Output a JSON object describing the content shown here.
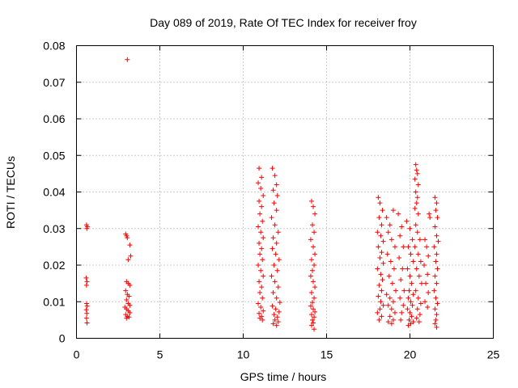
{
  "chart_data": {
    "type": "scatter",
    "title": "Day 089 of 2019, Rate Of TEC Index for receiver froy",
    "xlabel": "GPS time / hours",
    "ylabel": "ROTI / TECUs",
    "xlim": [
      0,
      25
    ],
    "ylim": [
      0,
      0.08
    ],
    "x_ticks": [
      0,
      5,
      10,
      15,
      20,
      25
    ],
    "y_ticks": [
      0,
      0.01,
      0.02,
      0.03,
      0.04,
      0.05,
      0.06,
      0.07,
      0.08
    ],
    "x_tick_labels": [
      "0",
      "5",
      "10",
      "15",
      "20",
      "25"
    ],
    "y_tick_labels": [
      "0",
      "0.01",
      "0.02",
      "0.03",
      "0.04",
      "0.05",
      "0.06",
      "0.07",
      "0.08"
    ],
    "grid": true,
    "marker": "+",
    "color": "#ff0000",
    "series": [
      {
        "name": "ROTI",
        "points": [
          [
            0.6,
            0.031
          ],
          [
            0.65,
            0.0305
          ],
          [
            0.62,
            0.03
          ],
          [
            0.58,
            0.0165
          ],
          [
            0.63,
            0.0155
          ],
          [
            0.6,
            0.0145
          ],
          [
            0.61,
            0.0095
          ],
          [
            0.64,
            0.0088
          ],
          [
            0.59,
            0.0078
          ],
          [
            0.62,
            0.0068
          ],
          [
            0.6,
            0.0055
          ],
          [
            0.63,
            0.0042
          ],
          [
            3.05,
            0.0762
          ],
          [
            2.95,
            0.0285
          ],
          [
            3.0,
            0.028
          ],
          [
            3.05,
            0.0275
          ],
          [
            3.2,
            0.0255
          ],
          [
            3.25,
            0.0225
          ],
          [
            3.1,
            0.0215
          ],
          [
            3.0,
            0.0155
          ],
          [
            3.1,
            0.015
          ],
          [
            3.2,
            0.0145
          ],
          [
            2.95,
            0.013
          ],
          [
            3.05,
            0.012
          ],
          [
            3.15,
            0.0115
          ],
          [
            3.0,
            0.0105
          ],
          [
            3.1,
            0.0095
          ],
          [
            3.2,
            0.009
          ],
          [
            2.9,
            0.0085
          ],
          [
            3.0,
            0.008
          ],
          [
            3.1,
            0.0075
          ],
          [
            3.2,
            0.007
          ],
          [
            2.95,
            0.0065
          ],
          [
            3.05,
            0.006
          ],
          [
            3.15,
            0.0058
          ],
          [
            3.0,
            0.0055
          ],
          [
            10.95,
            0.0465
          ],
          [
            11.1,
            0.044
          ],
          [
            10.9,
            0.0425
          ],
          [
            11.05,
            0.041
          ],
          [
            11.2,
            0.039
          ],
          [
            10.95,
            0.0375
          ],
          [
            11.1,
            0.036
          ],
          [
            11.0,
            0.034
          ],
          [
            11.15,
            0.032
          ],
          [
            10.9,
            0.0305
          ],
          [
            11.05,
            0.029
          ],
          [
            11.2,
            0.0275
          ],
          [
            10.95,
            0.026
          ],
          [
            11.1,
            0.0245
          ],
          [
            11.0,
            0.023
          ],
          [
            11.15,
            0.0215
          ],
          [
            10.9,
            0.02
          ],
          [
            11.05,
            0.0185
          ],
          [
            11.2,
            0.017
          ],
          [
            10.95,
            0.0155
          ],
          [
            11.1,
            0.014
          ],
          [
            11.0,
            0.0125
          ],
          [
            11.15,
            0.011
          ],
          [
            10.9,
            0.0095
          ],
          [
            11.05,
            0.0085
          ],
          [
            11.2,
            0.0075
          ],
          [
            10.95,
            0.0068
          ],
          [
            11.1,
            0.006
          ],
          [
            11.0,
            0.0055
          ],
          [
            11.15,
            0.005
          ],
          [
            11.75,
            0.0465
          ],
          [
            11.9,
            0.0445
          ],
          [
            12.0,
            0.042
          ],
          [
            11.8,
            0.0405
          ],
          [
            12.05,
            0.039
          ],
          [
            11.85,
            0.037
          ],
          [
            12.0,
            0.035
          ],
          [
            11.7,
            0.033
          ],
          [
            11.9,
            0.031
          ],
          [
            12.1,
            0.029
          ],
          [
            11.8,
            0.0275
          ],
          [
            12.0,
            0.026
          ],
          [
            11.75,
            0.0245
          ],
          [
            11.95,
            0.023
          ],
          [
            12.15,
            0.0215
          ],
          [
            11.85,
            0.02
          ],
          [
            12.05,
            0.0185
          ],
          [
            11.7,
            0.017
          ],
          [
            11.9,
            0.0155
          ],
          [
            12.1,
            0.014
          ],
          [
            11.8,
            0.0125
          ],
          [
            12.0,
            0.011
          ],
          [
            12.2,
            0.0098
          ],
          [
            11.75,
            0.0088
          ],
          [
            11.95,
            0.008
          ],
          [
            12.15,
            0.0072
          ],
          [
            11.85,
            0.0065
          ],
          [
            12.05,
            0.0058
          ],
          [
            11.9,
            0.005
          ],
          [
            12.1,
            0.0045
          ],
          [
            11.8,
            0.004
          ],
          [
            12.0,
            0.0035
          ],
          [
            14.1,
            0.0375
          ],
          [
            14.2,
            0.036
          ],
          [
            14.3,
            0.034
          ],
          [
            14.15,
            0.031
          ],
          [
            14.25,
            0.029
          ],
          [
            14.05,
            0.027
          ],
          [
            14.2,
            0.025
          ],
          [
            14.3,
            0.023
          ],
          [
            14.1,
            0.0215
          ],
          [
            14.25,
            0.02
          ],
          [
            14.15,
            0.0185
          ],
          [
            14.05,
            0.017
          ],
          [
            14.2,
            0.0155
          ],
          [
            14.3,
            0.014
          ],
          [
            14.1,
            0.0125
          ],
          [
            14.25,
            0.011
          ],
          [
            14.15,
            0.0098
          ],
          [
            14.05,
            0.0088
          ],
          [
            14.2,
            0.008
          ],
          [
            14.3,
            0.0072
          ],
          [
            14.1,
            0.0065
          ],
          [
            14.25,
            0.0058
          ],
          [
            14.15,
            0.005
          ],
          [
            14.2,
            0.0042
          ],
          [
            14.1,
            0.0035
          ],
          [
            14.25,
            0.0025
          ],
          [
            18.1,
            0.0385
          ],
          [
            18.2,
            0.037
          ],
          [
            18.35,
            0.035
          ],
          [
            18.15,
            0.033
          ],
          [
            18.3,
            0.031
          ],
          [
            18.05,
            0.029
          ],
          [
            18.25,
            0.028
          ],
          [
            18.4,
            0.0265
          ],
          [
            18.1,
            0.025
          ],
          [
            18.3,
            0.0235
          ],
          [
            18.2,
            0.022
          ],
          [
            18.4,
            0.0205
          ],
          [
            18.05,
            0.019
          ],
          [
            18.25,
            0.0175
          ],
          [
            18.35,
            0.016
          ],
          [
            18.15,
            0.0145
          ],
          [
            18.3,
            0.013
          ],
          [
            18.1,
            0.0115
          ],
          [
            18.25,
            0.01
          ],
          [
            18.4,
            0.009
          ],
          [
            18.2,
            0.008
          ],
          [
            18.05,
            0.007
          ],
          [
            18.3,
            0.006
          ],
          [
            18.15,
            0.005
          ],
          [
            18.6,
            0.033
          ],
          [
            18.8,
            0.031
          ],
          [
            19.0,
            0.035
          ],
          [
            18.7,
            0.029
          ],
          [
            18.9,
            0.027
          ],
          [
            19.1,
            0.025
          ],
          [
            18.65,
            0.023
          ],
          [
            18.85,
            0.021
          ],
          [
            19.05,
            0.019
          ],
          [
            18.75,
            0.017
          ],
          [
            18.95,
            0.015
          ],
          [
            19.15,
            0.013
          ],
          [
            18.6,
            0.012
          ],
          [
            18.8,
            0.011
          ],
          [
            19.0,
            0.01
          ],
          [
            18.7,
            0.009
          ],
          [
            18.9,
            0.008
          ],
          [
            19.1,
            0.007
          ],
          [
            18.8,
            0.006
          ],
          [
            19.0,
            0.005
          ],
          [
            18.7,
            0.0045
          ],
          [
            18.9,
            0.004
          ],
          [
            19.3,
            0.034
          ],
          [
            19.5,
            0.0305
          ],
          [
            19.4,
            0.028
          ],
          [
            19.6,
            0.025
          ],
          [
            19.35,
            0.022
          ],
          [
            19.55,
            0.019
          ],
          [
            19.45,
            0.016
          ],
          [
            19.65,
            0.013
          ],
          [
            19.4,
            0.011
          ],
          [
            19.6,
            0.009
          ],
          [
            19.5,
            0.007
          ],
          [
            19.45,
            0.005
          ],
          [
            19.8,
            0.032
          ],
          [
            20.0,
            0.03
          ],
          [
            20.15,
            0.027
          ],
          [
            19.9,
            0.025
          ],
          [
            20.05,
            0.023
          ],
          [
            20.2,
            0.021
          ],
          [
            19.85,
            0.019
          ],
          [
            20.0,
            0.017
          ],
          [
            20.1,
            0.015
          ],
          [
            19.95,
            0.013
          ],
          [
            20.2,
            0.012
          ],
          [
            19.9,
            0.011
          ],
          [
            20.05,
            0.01
          ],
          [
            20.15,
            0.009
          ],
          [
            19.85,
            0.008
          ],
          [
            20.0,
            0.007
          ],
          [
            20.1,
            0.006
          ],
          [
            19.95,
            0.005
          ],
          [
            20.2,
            0.0045
          ],
          [
            20.05,
            0.004
          ],
          [
            19.9,
            0.0035
          ],
          [
            20.35,
            0.0475
          ],
          [
            20.4,
            0.046
          ],
          [
            20.45,
            0.045
          ],
          [
            20.3,
            0.0435
          ],
          [
            20.5,
            0.042
          ],
          [
            20.35,
            0.04
          ],
          [
            20.45,
            0.0385
          ],
          [
            20.4,
            0.037
          ],
          [
            20.3,
            0.0355
          ],
          [
            20.5,
            0.034
          ],
          [
            20.35,
            0.031
          ],
          [
            20.45,
            0.029
          ],
          [
            20.6,
            0.027
          ],
          [
            20.3,
            0.025
          ],
          [
            20.5,
            0.023
          ],
          [
            20.65,
            0.021
          ],
          [
            20.4,
            0.019
          ],
          [
            20.55,
            0.017
          ],
          [
            20.7,
            0.015
          ],
          [
            20.35,
            0.013
          ],
          [
            20.5,
            0.011
          ],
          [
            20.65,
            0.0095
          ],
          [
            20.45,
            0.008
          ],
          [
            20.6,
            0.0065
          ],
          [
            20.4,
            0.0055
          ],
          [
            20.55,
            0.0045
          ],
          [
            20.9,
            0.027
          ],
          [
            21.0,
            0.025
          ],
          [
            21.1,
            0.0225
          ],
          [
            20.85,
            0.02
          ],
          [
            21.05,
            0.0175
          ],
          [
            20.95,
            0.015
          ],
          [
            21.1,
            0.0125
          ],
          [
            20.9,
            0.01
          ],
          [
            21.05,
            0.0085
          ],
          [
            21.2,
            0.033
          ],
          [
            21.15,
            0.034
          ],
          [
            21.5,
            0.0385
          ],
          [
            21.6,
            0.037
          ],
          [
            21.55,
            0.035
          ],
          [
            21.65,
            0.033
          ],
          [
            21.5,
            0.0305
          ],
          [
            21.6,
            0.028
          ],
          [
            21.7,
            0.0265
          ],
          [
            21.45,
            0.025
          ],
          [
            21.6,
            0.023
          ],
          [
            21.55,
            0.021
          ],
          [
            21.65,
            0.019
          ],
          [
            21.5,
            0.017
          ],
          [
            21.6,
            0.015
          ],
          [
            21.45,
            0.013
          ],
          [
            21.55,
            0.011
          ],
          [
            21.65,
            0.0095
          ],
          [
            21.5,
            0.008
          ],
          [
            21.6,
            0.0065
          ],
          [
            21.55,
            0.005
          ],
          [
            21.5,
            0.004
          ],
          [
            21.6,
            0.003
          ]
        ]
      }
    ]
  }
}
